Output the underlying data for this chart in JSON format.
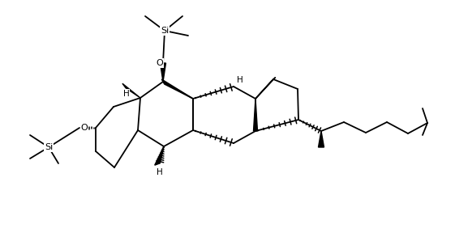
{
  "bg": "#ffffff",
  "lc": "#000000",
  "lw": 1.3,
  "fw": 5.42,
  "fh": 2.73,
  "dpi": 100,
  "note": "All coords in pixel space (x right, y down from top-left of 542x273 image)"
}
